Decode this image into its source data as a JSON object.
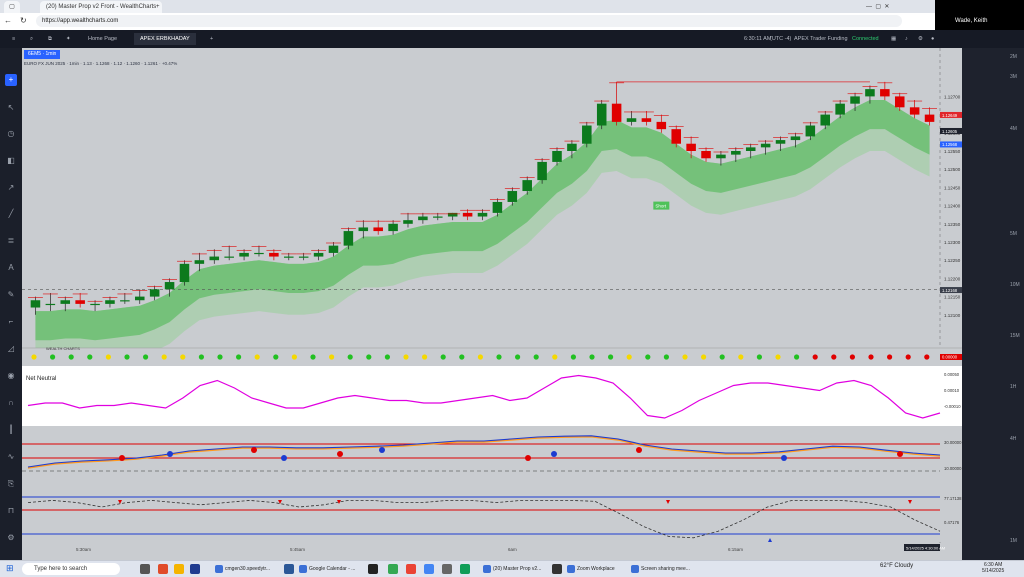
{
  "browser": {
    "tabs": [
      {
        "label": "(20) Master Prop v2 Front - WealthCharts"
      },
      {
        "label": "+"
      }
    ],
    "url": "https://app.wealthcharts.com"
  },
  "zoom": {
    "participant_name": "Wade, Keith"
  },
  "app": {
    "nav_tabs": [
      {
        "label": "Home Page"
      },
      {
        "label": "APEX ERBKHADAY"
      },
      {
        "label": "+"
      }
    ],
    "time": "6:30:11 AM",
    "timezone": "(UTC -4)",
    "account": "APEX Trader Funding",
    "status": "Connected"
  },
  "chart": {
    "symbol_tab": "6EM5 · 1min",
    "symbol_line": "EURO FX JUN 2025 · 1min · 1.13 · 1.1268 · 1.12 · 1.1260 · 1.1261 · +0.47%",
    "price_labels": [
      "1.12700",
      "1.12650",
      "1.12600",
      "1.12550",
      "1.12500",
      "1.12450",
      "1.12400",
      "1.12350",
      "1.12300",
      "1.12250",
      "1.12200",
      "1.12150",
      "1.12100"
    ],
    "price_badges": [
      {
        "text": "1.12649",
        "color": "#e0262b"
      },
      {
        "text": "1.12605",
        "color": "#1e222d"
      },
      {
        "text": "1.12568",
        "color": "#2962ff"
      },
      {
        "text": "1.12168",
        "color": "#3a3f4b"
      }
    ],
    "time_labels": [
      "5:30am",
      "5:45am",
      "6am",
      "6:15am"
    ],
    "time_cursor": "5/14/2025 4:30:00 AM",
    "entry_marker": "Short"
  },
  "panes": {
    "dots_label": "WEALTH CHARTS",
    "dots_value": "0.00000",
    "net_label": "Net Neutral",
    "net_values": [
      "0.00050",
      "0.00010",
      "-0.00010"
    ],
    "osc_values": [
      "30.00000",
      "10.00000"
    ],
    "stoch_values": [
      "77.17138",
      "0.47176"
    ]
  },
  "right_labels": [
    "2M",
    "3M",
    "4M",
    "5M",
    "10M",
    "15M",
    "1H",
    "4H",
    "1M"
  ],
  "taskbar": {
    "search_placeholder": "Type here to search",
    "apps": [
      {
        "label": "cmgen30.speedytr..."
      },
      {
        "label": "Google Calendar - ..."
      },
      {
        "label": "(20) Master Prop v2..."
      },
      {
        "label": "Zoom Workplace"
      },
      {
        "label": "Screen sharing mee..."
      }
    ],
    "weather": "62°F  Cloudy",
    "time": "6:30 AM",
    "date": "5/14/2025"
  },
  "chart_data": {
    "type": "candlestick",
    "symbol": "EURO FX JUN 2025",
    "interval": "1min",
    "ylim": [
      1.1205,
      1.128
    ],
    "candles": [
      {
        "o": 1.1212,
        "h": 1.1215,
        "l": 1.121,
        "c": 1.1214
      },
      {
        "o": 1.1213,
        "h": 1.1216,
        "l": 1.1211,
        "c": 1.1213
      },
      {
        "o": 1.1213,
        "h": 1.1215,
        "l": 1.1211,
        "c": 1.1214
      },
      {
        "o": 1.1214,
        "h": 1.1216,
        "l": 1.1212,
        "c": 1.1213
      },
      {
        "o": 1.1213,
        "h": 1.1214,
        "l": 1.1211,
        "c": 1.1213
      },
      {
        "o": 1.1213,
        "h": 1.1215,
        "l": 1.1212,
        "c": 1.1214
      },
      {
        "o": 1.1214,
        "h": 1.1216,
        "l": 1.1213,
        "c": 1.1214
      },
      {
        "o": 1.1214,
        "h": 1.1217,
        "l": 1.1213,
        "c": 1.1215
      },
      {
        "o": 1.1215,
        "h": 1.1218,
        "l": 1.1214,
        "c": 1.1217
      },
      {
        "o": 1.1217,
        "h": 1.122,
        "l": 1.1215,
        "c": 1.1219
      },
      {
        "o": 1.1219,
        "h": 1.1225,
        "l": 1.1218,
        "c": 1.1224
      },
      {
        "o": 1.1224,
        "h": 1.1227,
        "l": 1.1222,
        "c": 1.1225
      },
      {
        "o": 1.1225,
        "h": 1.1228,
        "l": 1.1224,
        "c": 1.1226
      },
      {
        "o": 1.1226,
        "h": 1.1229,
        "l": 1.1225,
        "c": 1.1226
      },
      {
        "o": 1.1226,
        "h": 1.1228,
        "l": 1.1225,
        "c": 1.1227
      },
      {
        "o": 1.1227,
        "h": 1.1229,
        "l": 1.1226,
        "c": 1.1227
      },
      {
        "o": 1.1227,
        "h": 1.1228,
        "l": 1.1225,
        "c": 1.1226
      },
      {
        "o": 1.1226,
        "h": 1.1227,
        "l": 1.1225,
        "c": 1.1226
      },
      {
        "o": 1.1226,
        "h": 1.1227,
        "l": 1.1225,
        "c": 1.1226
      },
      {
        "o": 1.1226,
        "h": 1.1228,
        "l": 1.1225,
        "c": 1.1227
      },
      {
        "o": 1.1227,
        "h": 1.123,
        "l": 1.1226,
        "c": 1.1229
      },
      {
        "o": 1.1229,
        "h": 1.1234,
        "l": 1.1228,
        "c": 1.1233
      },
      {
        "o": 1.1233,
        "h": 1.1236,
        "l": 1.1231,
        "c": 1.1234
      },
      {
        "o": 1.1234,
        "h": 1.1236,
        "l": 1.1232,
        "c": 1.1233
      },
      {
        "o": 1.1233,
        "h": 1.1236,
        "l": 1.1232,
        "c": 1.1235
      },
      {
        "o": 1.1235,
        "h": 1.1238,
        "l": 1.1234,
        "c": 1.1236
      },
      {
        "o": 1.1236,
        "h": 1.1238,
        "l": 1.1235,
        "c": 1.1237
      },
      {
        "o": 1.1237,
        "h": 1.1238,
        "l": 1.1236,
        "c": 1.1237
      },
      {
        "o": 1.1237,
        "h": 1.1238,
        "l": 1.1236,
        "c": 1.1238
      },
      {
        "o": 1.1238,
        "h": 1.1239,
        "l": 1.1236,
        "c": 1.1237
      },
      {
        "o": 1.1237,
        "h": 1.1239,
        "l": 1.1236,
        "c": 1.1238
      },
      {
        "o": 1.1238,
        "h": 1.1242,
        "l": 1.1237,
        "c": 1.1241
      },
      {
        "o": 1.1241,
        "h": 1.1245,
        "l": 1.124,
        "c": 1.1244
      },
      {
        "o": 1.1244,
        "h": 1.1248,
        "l": 1.1243,
        "c": 1.1247
      },
      {
        "o": 1.1247,
        "h": 1.1253,
        "l": 1.1246,
        "c": 1.1252
      },
      {
        "o": 1.1252,
        "h": 1.1256,
        "l": 1.1251,
        "c": 1.1255
      },
      {
        "o": 1.1255,
        "h": 1.1258,
        "l": 1.1253,
        "c": 1.1257
      },
      {
        "o": 1.1257,
        "h": 1.1263,
        "l": 1.1256,
        "c": 1.1262
      },
      {
        "o": 1.1262,
        "h": 1.1269,
        "l": 1.1261,
        "c": 1.1268
      },
      {
        "o": 1.1268,
        "h": 1.1274,
        "l": 1.1262,
        "c": 1.1263
      },
      {
        "o": 1.1263,
        "h": 1.1266,
        "l": 1.1262,
        "c": 1.1264
      },
      {
        "o": 1.1264,
        "h": 1.1266,
        "l": 1.1262,
        "c": 1.1263
      },
      {
        "o": 1.1263,
        "h": 1.1265,
        "l": 1.126,
        "c": 1.1261
      },
      {
        "o": 1.1261,
        "h": 1.1262,
        "l": 1.1256,
        "c": 1.1257
      },
      {
        "o": 1.1257,
        "h": 1.1259,
        "l": 1.1253,
        "c": 1.1255
      },
      {
        "o": 1.1255,
        "h": 1.1256,
        "l": 1.1252,
        "c": 1.1253
      },
      {
        "o": 1.1253,
        "h": 1.1255,
        "l": 1.1251,
        "c": 1.1254
      },
      {
        "o": 1.1254,
        "h": 1.1256,
        "l": 1.1252,
        "c": 1.1255
      },
      {
        "o": 1.1255,
        "h": 1.1257,
        "l": 1.1253,
        "c": 1.1256
      },
      {
        "o": 1.1256,
        "h": 1.1258,
        "l": 1.1254,
        "c": 1.1257
      },
      {
        "o": 1.1257,
        "h": 1.1259,
        "l": 1.1255,
        "c": 1.1258
      },
      {
        "o": 1.1258,
        "h": 1.126,
        "l": 1.1256,
        "c": 1.1259
      },
      {
        "o": 1.1259,
        "h": 1.1263,
        "l": 1.1258,
        "c": 1.1262
      },
      {
        "o": 1.1262,
        "h": 1.1266,
        "l": 1.1261,
        "c": 1.1265
      },
      {
        "o": 1.1265,
        "h": 1.1269,
        "l": 1.1264,
        "c": 1.1268
      },
      {
        "o": 1.1268,
        "h": 1.1271,
        "l": 1.1266,
        "c": 1.127
      },
      {
        "o": 1.127,
        "h": 1.1273,
        "l": 1.1268,
        "c": 1.1272
      },
      {
        "o": 1.1272,
        "h": 1.1274,
        "l": 1.1269,
        "c": 1.127
      },
      {
        "o": 1.127,
        "h": 1.1271,
        "l": 1.1266,
        "c": 1.1267
      },
      {
        "o": 1.1267,
        "h": 1.1269,
        "l": 1.1264,
        "c": 1.1265
      },
      {
        "o": 1.1265,
        "h": 1.1267,
        "l": 1.1262,
        "c": 1.1263
      }
    ],
    "resistance_line": 1.1274,
    "support_line": 1.1217
  }
}
